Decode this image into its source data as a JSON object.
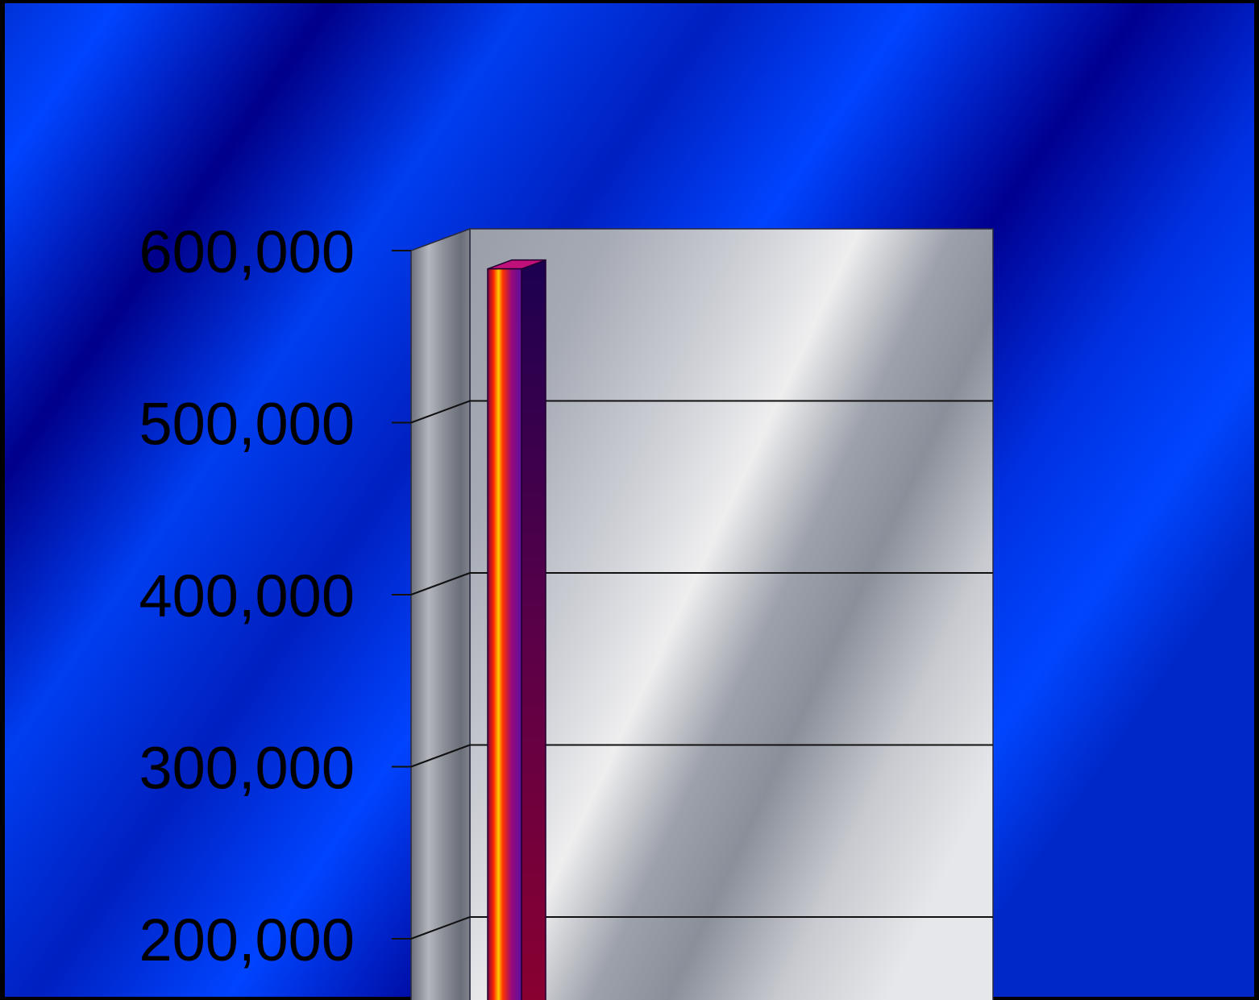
{
  "chart_data": {
    "type": "bar",
    "style": "3d",
    "categories": [
      ""
    ],
    "values": [
      595000
    ],
    "y_ticks": [
      200000,
      300000,
      400000,
      500000,
      600000
    ],
    "y_tick_labels": [
      "200,000",
      "300,000",
      "400,000",
      "500,000",
      "600,000"
    ],
    "ylim": [
      180000,
      600000
    ],
    "grid": true,
    "title": "",
    "xlabel": "",
    "ylabel": ""
  },
  "colors": {
    "background_dark": "#000080",
    "background_light": "#0044ff",
    "walls": "#c0c4cc",
    "bar_front_left": "#ff6600",
    "bar_front_right": "#8800aa",
    "bar_side": "#3a0050",
    "grid": "#000000"
  }
}
